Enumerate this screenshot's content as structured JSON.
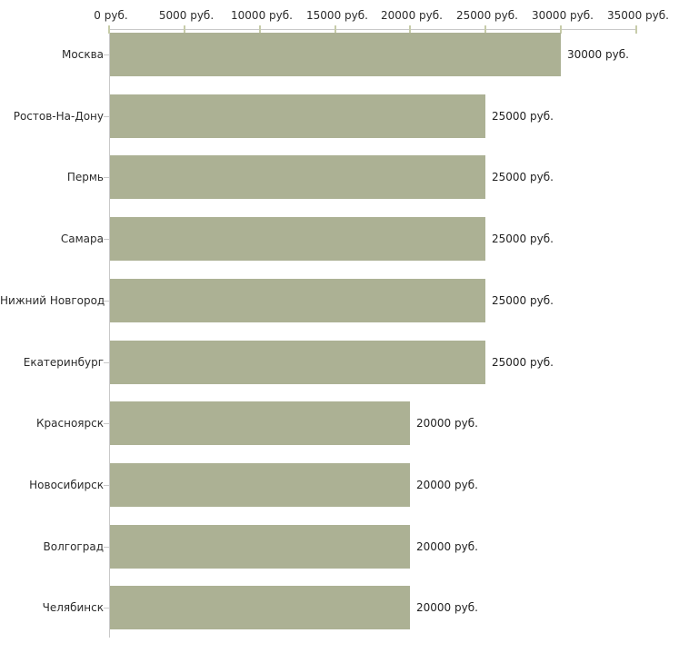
{
  "chart": {
    "background_color": "#ffffff",
    "bar_color": "#acb194",
    "axis_color": "#c9c9c9",
    "tick_color": "#c7cca9",
    "text_color": "#2b2b2b"
  },
  "chart_data": {
    "type": "bar",
    "orientation": "horizontal",
    "title": "",
    "xlabel": "",
    "ylabel": "",
    "xlim": [
      0,
      35000
    ],
    "grid": false,
    "legend": false,
    "x_ticks": [
      0,
      5000,
      10000,
      15000,
      20000,
      25000,
      30000,
      35000
    ],
    "x_tick_labels": [
      "0 руб.",
      "5000 руб.",
      "10000 руб.",
      "15000 руб.",
      "20000 руб.",
      "25000 руб.",
      "30000 руб.",
      "35000 руб."
    ],
    "categories": [
      "Москва",
      "Ростов-На-Дону",
      "Пермь",
      "Самара",
      "Нижний Новгород",
      "Екатеринбург",
      "Красноярск",
      "Новосибирск",
      "Волгоград",
      "Челябинск"
    ],
    "values": [
      30000,
      25000,
      25000,
      25000,
      25000,
      25000,
      20000,
      20000,
      20000,
      20000
    ],
    "value_labels": [
      "30000 руб.",
      "25000 руб.",
      "25000 руб.",
      "25000 руб.",
      "25000 руб.",
      "25000 руб.",
      "20000 руб.",
      "20000 руб.",
      "20000 руб.",
      "20000 руб."
    ]
  }
}
